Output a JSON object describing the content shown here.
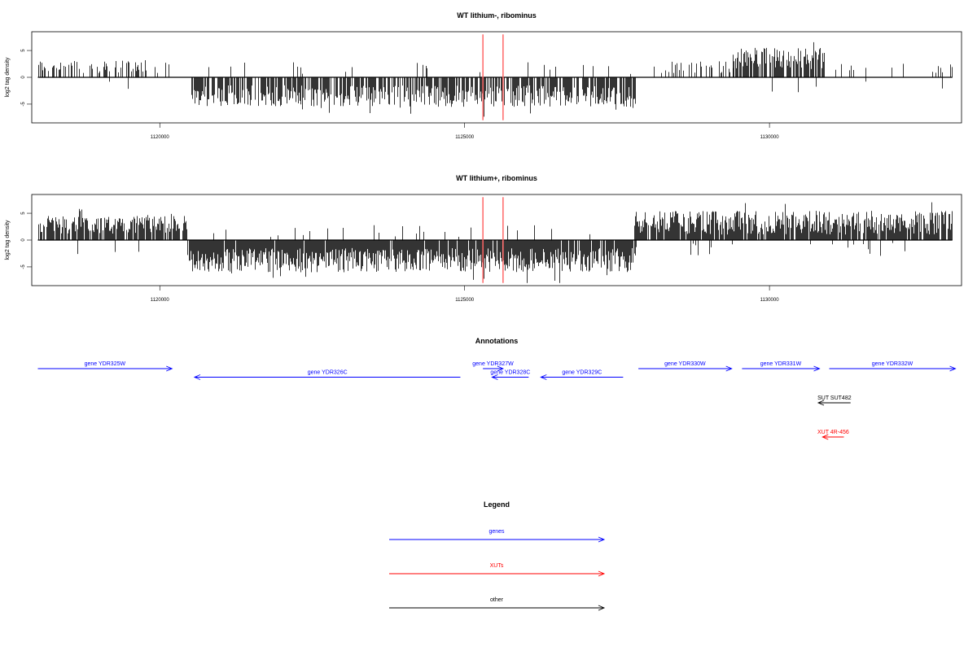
{
  "colors": {
    "genes": "#0000ff",
    "xuts": "#ff0000",
    "other": "#000000",
    "marker": "#ff6666",
    "bar": "#000000"
  },
  "chart_data": [
    {
      "type": "bar",
      "title": "WT lithium-, ribominus",
      "ylabel": "log2 tag density",
      "xlim": [
        1117900,
        1133150
      ],
      "ylim": [
        -8.5,
        8.5
      ],
      "x_ticks": [
        1120000,
        1125000,
        1130000
      ],
      "x_tick_labels": [
        "1120000",
        "1125000",
        "1130000"
      ],
      "y_ticks": [
        5,
        0,
        -5
      ],
      "y_tick_labels": [
        "5",
        "0",
        "-5"
      ],
      "baseline": {
        "from": 1118000,
        "to": 1133000
      },
      "markers": [
        1125300,
        1125630
      ],
      "segments": [
        {
          "from": 1118000,
          "to": 1120150,
          "sign": 1,
          "min": 0.8,
          "max": 3.2,
          "density": 0.35
        },
        {
          "from": 1120500,
          "to": 1127800,
          "sign": -1,
          "min": 1.5,
          "max": 5.5,
          "density": 0.75
        },
        {
          "from": 1128000,
          "to": 1129400,
          "sign": 1,
          "min": 0.8,
          "max": 3.0,
          "density": 0.3
        },
        {
          "from": 1129400,
          "to": 1130900,
          "sign": 1,
          "min": 1.5,
          "max": 5.5,
          "density": 0.8
        },
        {
          "from": 1131000,
          "to": 1133000,
          "sign": 1,
          "min": 0.8,
          "max": 3.0,
          "density": 0.08
        }
      ]
    },
    {
      "type": "bar",
      "title": "WT lithium+, ribominus",
      "ylabel": "log2 tag density",
      "xlim": [
        1117900,
        1133150
      ],
      "ylim": [
        -8.5,
        8.5
      ],
      "x_ticks": [
        1120000,
        1125000,
        1130000
      ],
      "x_tick_labels": [
        "1120000",
        "1125000",
        "1130000"
      ],
      "y_ticks": [
        5,
        0,
        -5
      ],
      "y_tick_labels": [
        "5",
        "0",
        "-5"
      ],
      "baseline": {
        "from": 1118000,
        "to": 1133000
      },
      "markers": [
        1125300,
        1125630
      ],
      "segments": [
        {
          "from": 1118000,
          "to": 1120450,
          "sign": 1,
          "min": 1.2,
          "max": 4.5,
          "density": 0.85
        },
        {
          "from": 1120450,
          "to": 1127800,
          "sign": -1,
          "min": 1.5,
          "max": 6.0,
          "density": 0.95
        },
        {
          "from": 1127800,
          "to": 1133000,
          "sign": 1,
          "min": 1.0,
          "max": 5.5,
          "density": 0.9
        }
      ]
    }
  ],
  "annotations": {
    "title": "Annotations",
    "features": [
      {
        "label": "gene YDR325W",
        "category": "genes",
        "start": 1118000,
        "end": 1120200,
        "strand": "+",
        "row": 0
      },
      {
        "label": "gene YDR326C",
        "category": "genes",
        "start": 1120570,
        "end": 1124930,
        "strand": "-",
        "row": 1
      },
      {
        "label": "gene YDR327W",
        "category": "genes",
        "start": 1125300,
        "end": 1125630,
        "strand": "+",
        "row": 0
      },
      {
        "label": "gene YDR328C",
        "category": "genes",
        "start": 1125450,
        "end": 1126050,
        "strand": "-",
        "row": 1
      },
      {
        "label": "gene YDR329C",
        "category": "genes",
        "start": 1126250,
        "end": 1127600,
        "strand": "-",
        "row": 1
      },
      {
        "label": "gene YDR330W",
        "category": "genes",
        "start": 1127850,
        "end": 1129380,
        "strand": "+",
        "row": 0
      },
      {
        "label": "gene YDR331W",
        "category": "genes",
        "start": 1129550,
        "end": 1130820,
        "strand": "+",
        "row": 0
      },
      {
        "label": "gene YDR332W",
        "category": "genes",
        "start": 1130980,
        "end": 1133050,
        "strand": "+",
        "row": 0
      },
      {
        "label": "SUT SUT482",
        "category": "other",
        "start": 1130800,
        "end": 1131330,
        "strand": "-",
        "row": 4
      },
      {
        "label": "XUT 4R-456",
        "category": "xuts",
        "start": 1130870,
        "end": 1131220,
        "strand": "-",
        "row": 8
      }
    ]
  },
  "legend": {
    "title": "Legend",
    "items": [
      {
        "label": "genes",
        "category": "genes"
      },
      {
        "label": "XUTs",
        "category": "xuts"
      },
      {
        "label": "other",
        "category": "other"
      }
    ]
  }
}
